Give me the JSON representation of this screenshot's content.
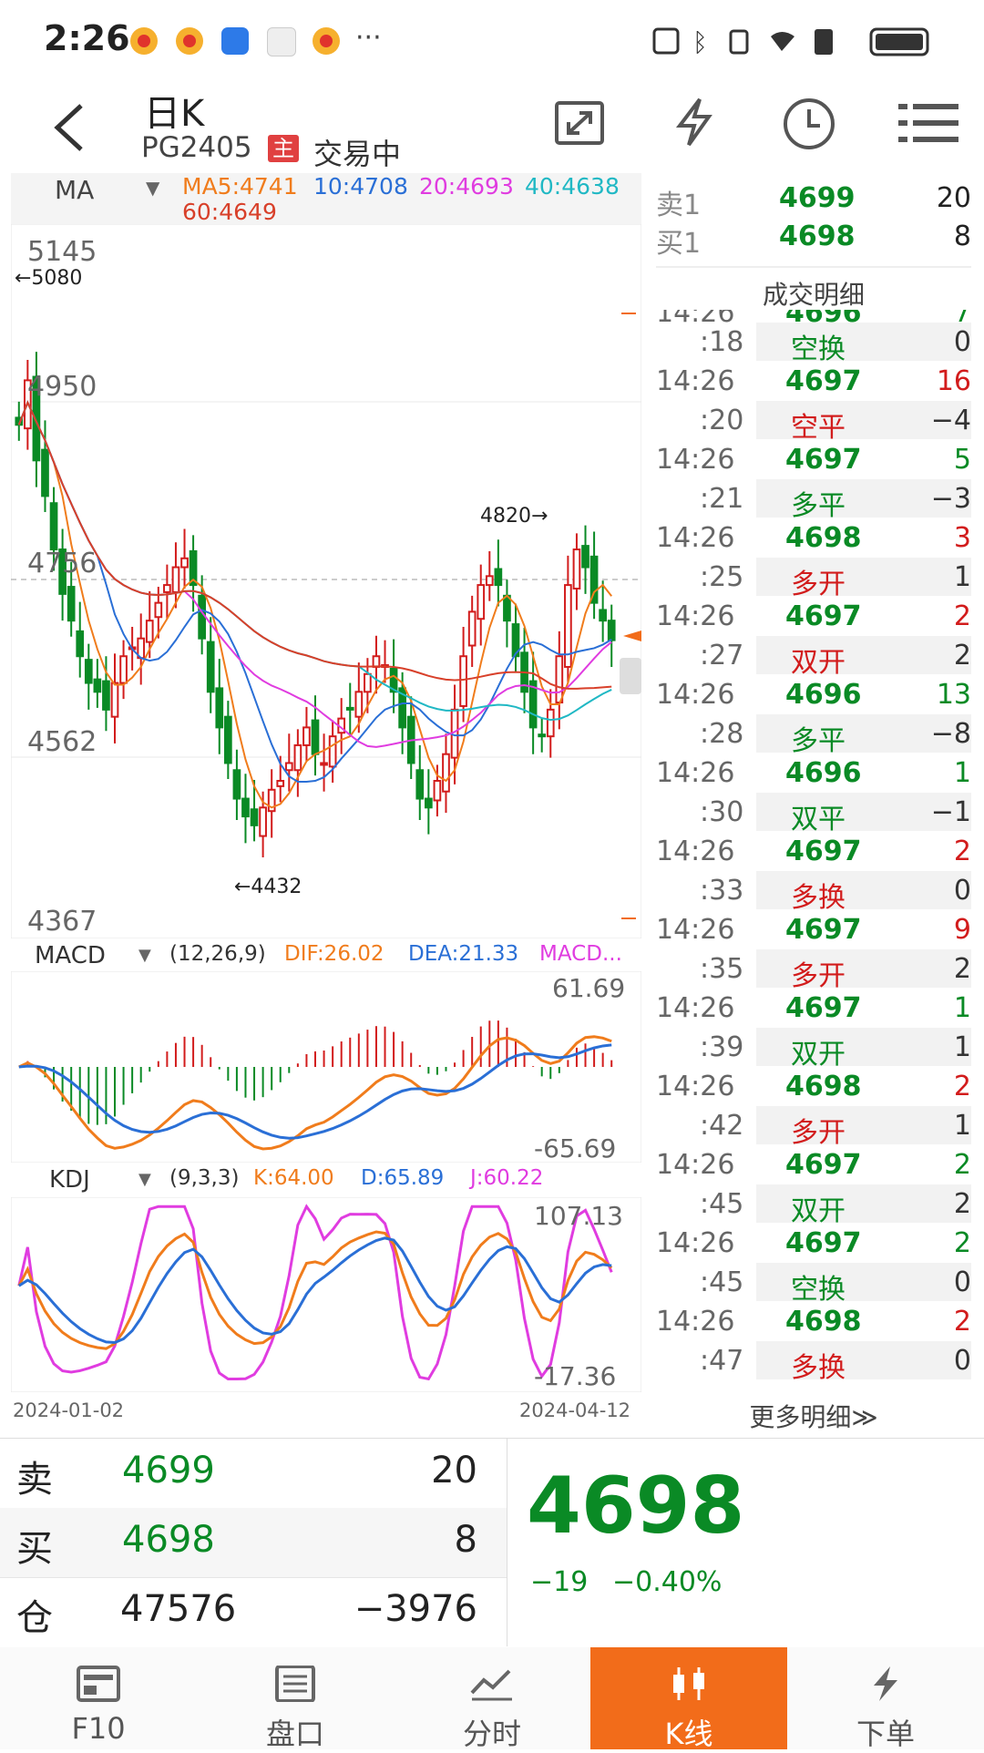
{
  "status": {
    "time": "2:26",
    "dots": "···"
  },
  "header": {
    "title": "日K",
    "contract": "PG2405",
    "main_badge": "主",
    "state": "交易中"
  },
  "indicators": {
    "ma": {
      "name": "MA",
      "ma5": "MA5:4741",
      "ma10": "10:4708",
      "ma20": "20:4693",
      "ma40": "40:4638",
      "ma60": "60:4649"
    },
    "macd": {
      "name": "MACD",
      "params": "(12,26,9)",
      "dif": "DIF:26.02",
      "dea": "DEA:21.33",
      "macd": "MACD...",
      "top": "61.69",
      "bottom": "-65.69"
    },
    "kdj": {
      "name": "KDJ",
      "params": "(9,3,3)",
      "k": "K:64.00",
      "d": "D:65.89",
      "j": "J:60.22",
      "top": "107.13",
      "bottom": "-17.36"
    }
  },
  "chart_data": {
    "type": "candlestick",
    "y_labels": [
      "5145",
      "4950",
      "4756",
      "4562",
      "4367"
    ],
    "high_mark": "←5080",
    "low_mark": "←4432",
    "peak_mark": "4820→",
    "x_start": "2024-01-02",
    "x_end": "2024-04-12",
    "closes": [
      4940,
      4990,
      4900,
      4860,
      4800,
      4750,
      4720,
      4680,
      4650,
      4640,
      4620,
      4650,
      4680,
      4690,
      4700,
      4720,
      4740,
      4760,
      4780,
      4790,
      4760,
      4700,
      4640,
      4600,
      4560,
      4520,
      4500,
      4490,
      4510,
      4530,
      4540,
      4560,
      4580,
      4600,
      4570,
      4560,
      4590,
      4610,
      4620,
      4640,
      4660,
      4680,
      4670,
      4640,
      4600,
      4560,
      4520,
      4510,
      4540,
      4570,
      4620,
      4680,
      4730,
      4760,
      4770,
      4760,
      4720,
      4680,
      4640,
      4600,
      4590,
      4620,
      4680,
      4760,
      4800,
      4780,
      4740,
      4720,
      4698
    ]
  },
  "depth": {
    "sell_label": "卖1",
    "sell_price": "4699",
    "sell_vol": "20",
    "buy_label": "买1",
    "buy_price": "4698",
    "buy_vol": "8"
  },
  "trades": {
    "title": "成交明细",
    "partial": {
      "time": "14:26",
      "price": "4696",
      "vol": "7"
    },
    "rows": [
      {
        "sec": ":18",
        "type": "空换",
        "type_color": "green",
        "diff": "0",
        "time": "14:26",
        "price": "4697",
        "vol": "16",
        "vol_color": "red"
      },
      {
        "sec": ":20",
        "type": "空平",
        "type_color": "red",
        "diff": "−4",
        "time": "14:26",
        "price": "4697",
        "vol": "5",
        "vol_color": "green"
      },
      {
        "sec": ":21",
        "type": "多平",
        "type_color": "green",
        "diff": "−3",
        "time": "14:26",
        "price": "4698",
        "vol": "3",
        "vol_color": "red"
      },
      {
        "sec": ":25",
        "type": "多开",
        "type_color": "red",
        "diff": "1",
        "time": "14:26",
        "price": "4697",
        "vol": "2",
        "vol_color": "red"
      },
      {
        "sec": ":27",
        "type": "双开",
        "type_color": "red",
        "diff": "2",
        "time": "14:26",
        "price": "4696",
        "vol": "13",
        "vol_color": "green"
      },
      {
        "sec": ":28",
        "type": "多平",
        "type_color": "green",
        "diff": "−8",
        "time": "14:26",
        "price": "4696",
        "vol": "1",
        "vol_color": "green"
      },
      {
        "sec": ":30",
        "type": "双平",
        "type_color": "green",
        "diff": "−1",
        "time": "14:26",
        "price": "4697",
        "vol": "2",
        "vol_color": "red"
      },
      {
        "sec": ":33",
        "type": "多换",
        "type_color": "red",
        "diff": "0",
        "time": "14:26",
        "price": "4697",
        "vol": "9",
        "vol_color": "red"
      },
      {
        "sec": ":35",
        "type": "多开",
        "type_color": "red",
        "diff": "2",
        "time": "14:26",
        "price": "4697",
        "vol": "1",
        "vol_color": "green"
      },
      {
        "sec": ":39",
        "type": "双开",
        "type_color": "green",
        "diff": "1",
        "time": "14:26",
        "price": "4698",
        "vol": "2",
        "vol_color": "red"
      },
      {
        "sec": ":42",
        "type": "多开",
        "type_color": "red",
        "diff": "1",
        "time": "14:26",
        "price": "4697",
        "vol": "2",
        "vol_color": "green"
      },
      {
        "sec": ":45",
        "type": "双开",
        "type_color": "green",
        "diff": "2",
        "time": "14:26",
        "price": "4697",
        "vol": "2",
        "vol_color": "green"
      },
      {
        "sec": ":45",
        "type": "空换",
        "type_color": "green",
        "diff": "0",
        "time": "14:26",
        "price": "4698",
        "vol": "2",
        "vol_color": "red"
      },
      {
        "sec": ":47",
        "type": "多换",
        "type_color": "red",
        "diff": "0",
        "time": "",
        "price": "",
        "vol": "",
        "vol_color": "red"
      }
    ],
    "more": "更多明细≫"
  },
  "quote": {
    "sell_label": "卖",
    "sell_price": "4699",
    "sell_vol": "20",
    "buy_label": "买",
    "buy_price": "4698",
    "buy_vol": "8",
    "oi_label": "仓",
    "oi": "47576",
    "oi_change": "−3976",
    "last": "4698",
    "change": "−19",
    "change_pct": "−0.40%"
  },
  "tabs": [
    {
      "label": "F10",
      "icon": "f10-icon"
    },
    {
      "label": "盘口",
      "icon": "orderbook-icon"
    },
    {
      "label": "分时",
      "icon": "intraday-icon"
    },
    {
      "label": "K线",
      "icon": "kline-icon"
    },
    {
      "label": "下单",
      "icon": "order-icon"
    }
  ],
  "colors": {
    "up": "#d21c1c",
    "down": "#0a8a25",
    "accent": "#f26c1a",
    "ma5": "#f07c1c",
    "ma10": "#2a6fd6",
    "ma20": "#e03ce0",
    "ma40": "#20b8c4",
    "ma60": "#d8402a"
  }
}
